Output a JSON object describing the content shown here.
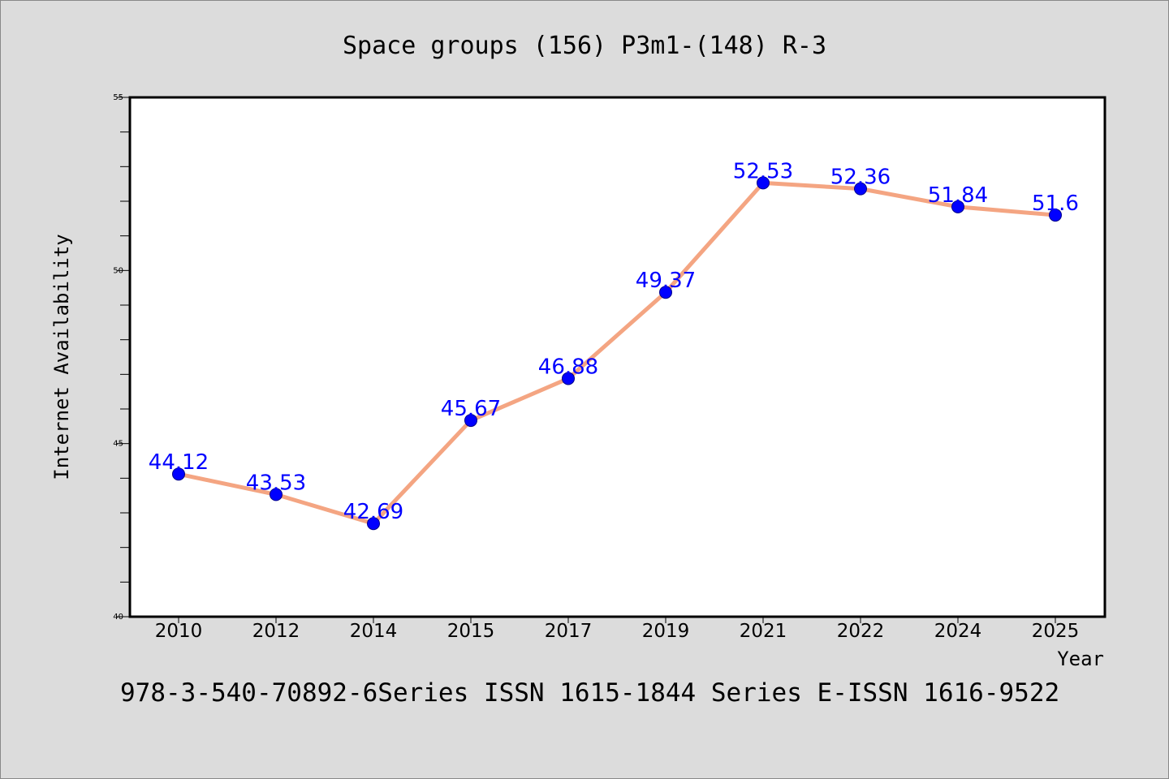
{
  "chart_data": {
    "type": "line",
    "title": "Space groups (156) P3m1-(148) R-3",
    "xlabel": "Year",
    "ylabel": "Internet Availability",
    "categories": [
      "2010",
      "2012",
      "2014",
      "2015",
      "2017",
      "2019",
      "2021",
      "2022",
      "2024",
      "2025"
    ],
    "series": [
      {
        "values": [
          44.12,
          43.53,
          42.69,
          45.67,
          46.88,
          49.37,
          52.53,
          52.36,
          51.84,
          51.6
        ],
        "labels": [
          "44.12",
          "43.53",
          "42.69",
          "45.67",
          "46.88",
          "49.37",
          "52.53",
          "52.36",
          "51.84",
          "51.6"
        ]
      }
    ],
    "ylim": [
      40,
      55
    ],
    "yticks": [
      "40",
      "45",
      "50",
      "55"
    ],
    "grid": false,
    "legend": "none",
    "colors": {
      "line": "#f4a582",
      "marker": "#0000ff",
      "data_label": "#0000ff",
      "plot_background": "#ffffff",
      "page_background": "#dcdcdc"
    }
  },
  "footer": {
    "text": "978-3-540-70892-6Series ISSN 1615-1844 Series E-ISSN 1616-9522"
  }
}
